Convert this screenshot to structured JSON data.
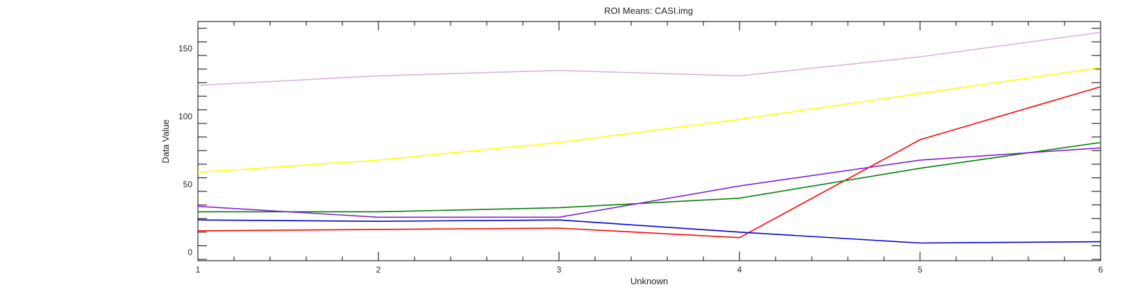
{
  "chart_data": {
    "type": "line",
    "title": "ROI Means: CASI.img",
    "xlabel": "Unknown",
    "ylabel": "Data Value",
    "x": [
      1,
      2,
      3,
      4,
      5,
      6
    ],
    "xlim": [
      1,
      6
    ],
    "ylim": [
      -6,
      170
    ],
    "xticks": [
      "1",
      "2",
      "3",
      "4",
      "5",
      "6"
    ],
    "yticks": [
      0,
      50,
      100,
      150
    ],
    "ytick_labels": [
      "0",
      "50",
      "100",
      "150"
    ],
    "grid": false,
    "series": [
      {
        "color": "#d8b4d8",
        "values": [
          123,
          130,
          134,
          130,
          144,
          162
        ]
      },
      {
        "color": "#ffff00",
        "values": [
          59,
          68,
          81,
          98,
          117,
          136
        ]
      },
      {
        "color": "#ff0000",
        "values": [
          16,
          17,
          18,
          11,
          83,
          122
        ]
      },
      {
        "color": "#008000",
        "values": [
          30,
          30,
          33,
          40,
          62,
          81
        ]
      },
      {
        "color": "#8020d0",
        "values": [
          34,
          26,
          26,
          49,
          68,
          77
        ]
      },
      {
        "color": "#0000d0",
        "values": [
          24,
          23,
          24,
          15,
          7,
          8
        ]
      }
    ]
  }
}
